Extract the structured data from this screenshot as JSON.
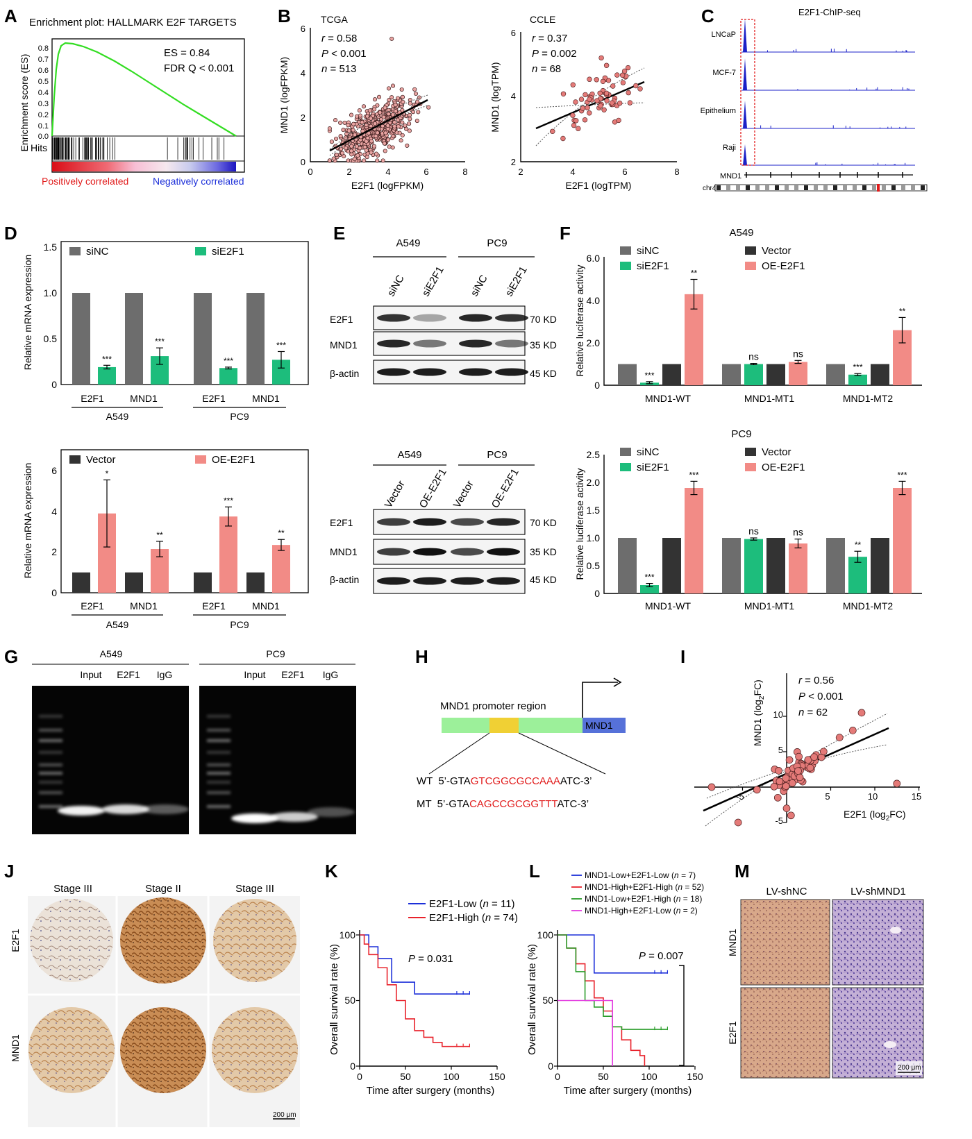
{
  "panel_labels": [
    "A",
    "B",
    "C",
    "D",
    "E",
    "F",
    "G",
    "H",
    "I",
    "J",
    "K",
    "L",
    "M"
  ],
  "colors": {
    "siNC": "#6d6d6d",
    "siE2F1": "#1dbd7c",
    "vector": "#333333",
    "oe_e2f1": "#f28b86",
    "gsea_curve": "#33dd22",
    "km_blue": "#1c2fd9",
    "km_red": "#e8222b",
    "km_green": "#2a9d2a",
    "km_magenta": "#e33ce0",
    "scatter_fill": "#e9a4a2",
    "scatter_fill_dark": "#e47a78",
    "chip_peak": "#1b22c8",
    "red": "#e11b1b"
  },
  "panelA": {
    "title": "Enrichment plot: HALLMARK E2F TARGETS",
    "ylabel": "Enrichment score (ES)",
    "hits_label": "Hits",
    "es_text": "ES = 0.84",
    "fdr_text": "FDR Q < 0.001",
    "pos_label": "Positively correlated",
    "neg_label": "Negatively correlated",
    "yticks": [
      "0.8",
      "0.7",
      "0.6",
      "0.5",
      "0.4",
      "0.3",
      "0.2",
      "0.1",
      "0.0"
    ]
  },
  "panelB": {
    "tcga": {
      "title": "TCGA",
      "r_label": "r",
      "r_value": " = 0.58",
      "p_label": "P",
      "p_value": " < 0.001",
      "n_label": "n",
      "n_value": " = 513",
      "xlabel": "E2F1 (logFPKM)",
      "ylabel": "MND1 (logFPKM)",
      "xticks": [
        "0",
        "2",
        "4",
        "6",
        "8"
      ],
      "yticks": [
        "0",
        "2",
        "4",
        "6"
      ]
    },
    "ccle": {
      "title": "CCLE",
      "r_label": "r",
      "r_value": " = 0.37",
      "p_label": "P",
      "p_value": " = 0.002",
      "n_label": "n",
      "n_value": " = 68",
      "xlabel": "E2F1 (logTPM)",
      "ylabel": "MND1 (logTPM)",
      "xticks": [
        "2",
        "4",
        "6",
        "8"
      ],
      "yticks": [
        "2",
        "4",
        "6"
      ]
    }
  },
  "panelC": {
    "title": "E2F1-ChIP-seq",
    "tracks": [
      "LNCaP",
      "MCF-7",
      "Epithelium",
      "Raji"
    ],
    "gene": "MND1",
    "chrom": "chr4"
  },
  "panelD": {
    "top": {
      "ylabel": "Relative mRNA expression",
      "legend": [
        "siNC",
        "siE2F1"
      ],
      "yticks": [
        "0",
        "0.5",
        "1.0",
        "1.5"
      ],
      "genes": [
        "E2F1",
        "MND1",
        "E2F1",
        "MND1"
      ],
      "groups": [
        "A549",
        "PC9"
      ],
      "sig": [
        "***",
        "***",
        "***",
        "***"
      ]
    },
    "bottom": {
      "ylabel": "Relative mRNA expression",
      "legend": [
        "Vector",
        "OE-E2F1"
      ],
      "yticks": [
        "0",
        "2",
        "4",
        "6"
      ],
      "genes": [
        "E2F1",
        "MND1",
        "E2F1",
        "MND1"
      ],
      "groups": [
        "A549",
        "PC9"
      ],
      "sig": [
        "*",
        "**",
        "***",
        "**"
      ]
    }
  },
  "panelE": {
    "top": {
      "groups": [
        "A549",
        "PC9"
      ],
      "lanes": [
        "siNC",
        "siE2F1",
        "siNC",
        "siE2F1"
      ],
      "rows": [
        "E2F1",
        "MND1",
        "β-actin"
      ],
      "sizes": [
        "70 KD",
        "35 KD",
        "45 KD"
      ]
    },
    "bottom": {
      "groups": [
        "A549",
        "PC9"
      ],
      "lanes": [
        "Vector",
        "OE-E2F1",
        "Vector",
        "OE-E2F1"
      ],
      "rows": [
        "E2F1",
        "MND1",
        "β-actin"
      ],
      "sizes": [
        "70 KD",
        "35 KD",
        "45 KD"
      ]
    }
  },
  "panelF": {
    "top": {
      "title": "A549",
      "ylabel": "Relative luciferase activity",
      "legend": [
        "siNC",
        "siE2F1",
        "Vector",
        "OE-E2F1"
      ],
      "yticks": [
        "0",
        "2.0",
        "4.0",
        "6.0"
      ],
      "groups": [
        "MND1-WT",
        "MND1-MT1",
        "MND1-MT2"
      ],
      "sig": [
        "***",
        "**",
        "ns",
        "ns",
        "***",
        "**"
      ]
    },
    "bottom": {
      "title": "PC9",
      "ylabel": "Relative luciferase activity",
      "legend": [
        "siNC",
        "siE2F1",
        "Vector",
        "OE-E2F1"
      ],
      "yticks": [
        "0",
        "0.5",
        "1.0",
        "1.5",
        "2.0",
        "2.5"
      ],
      "groups": [
        "MND1-WT",
        "MND1-MT1",
        "MND1-MT2"
      ],
      "sig": [
        "***",
        "***",
        "ns",
        "ns",
        "**",
        "***"
      ]
    }
  },
  "panelG": {
    "groups": [
      "A549",
      "PC9"
    ],
    "lanes": [
      "Input",
      "E2F1",
      "IgG",
      "Input",
      "E2F1",
      "IgG"
    ]
  },
  "panelH": {
    "region_label": "MND1 promoter region",
    "gene": "MND1",
    "wt_label": "WT",
    "wt_pre": "5’-GTA",
    "wt_site": "GTCGGCGCCAAA",
    "wt_post": "ATC-3’",
    "mt_label": "MT",
    "mt_pre": "5’-GTA",
    "mt_site": "CAGCCGCGGTTT",
    "mt_post": "ATC-3’"
  },
  "panelI": {
    "r_label": "r",
    "r_value": " = 0.56",
    "p_label": "P",
    "p_value": " < 0.001",
    "n_label": "n",
    "n_value": " = 62",
    "xlabel_main": "E2F1 (log",
    "xlabel_sub": "2",
    "xlabel_end": "FC)",
    "ylabel_main": "MND1 (log",
    "ylabel_sub": "2",
    "ylabel_end": "FC)",
    "xticks": [
      "-5",
      "5",
      "10",
      "15"
    ],
    "yticks": [
      "-5",
      "5",
      "10"
    ]
  },
  "panelJ": {
    "stages": [
      "Stage III",
      "Stage II",
      "Stage III"
    ],
    "rows": [
      "E2F1",
      "MND1"
    ],
    "scale": "200 μm"
  },
  "panelK": {
    "legend": [
      {
        "name": "E2F1-Low (",
        "n": "n",
        "val": " = 11)"
      },
      {
        "name": "E2F1-High (",
        "n": "n",
        "val": " = 74)"
      }
    ],
    "p_label": "P",
    "p_value": " = 0.031",
    "ylabel": "Overall survival rate (%)",
    "xlabel": "Time after surgery (months)",
    "xticks": [
      "0",
      "50",
      "100",
      "150"
    ],
    "yticks": [
      "0",
      "50",
      "100"
    ]
  },
  "panelL": {
    "legend": [
      {
        "name": "MND1-Low+E2F1-Low (",
        "n": "n",
        "val": " = 7)"
      },
      {
        "name": "MND1-High+E2F1-High (",
        "n": "n",
        "val": " = 52)"
      },
      {
        "name": "MND1-Low+E2F1-High (",
        "n": "n",
        "val": " = 18)"
      },
      {
        "name": "MND1-High+E2F1-Low (",
        "n": "n",
        "val": " = 2)"
      }
    ],
    "p_label": "P",
    "p_value": " = 0.007",
    "ylabel": "Overall survival rate (%)",
    "xlabel": "Time after surgery (months)",
    "xticks": [
      "0",
      "50",
      "100",
      "150"
    ],
    "yticks": [
      "0",
      "50",
      "100"
    ]
  },
  "panelM": {
    "cols": [
      "LV-shNC",
      "LV-shMND1"
    ],
    "rows": [
      "MND1",
      "E2F1"
    ],
    "scale": "200 μm"
  },
  "chart_data": [
    {
      "type": "line",
      "panel": "A",
      "title": "Enrichment plot: HALLMARK E2F TARGETS",
      "ylabel": "Enrichment score (ES)",
      "ylim": [
        0,
        0.85
      ],
      "series": [
        {
          "values": [
            0,
            0.5,
            0.78,
            0.84,
            0.82,
            0.78,
            0.72,
            0.65,
            0.57,
            0.49,
            0.41,
            0.33,
            0.25,
            0.17,
            0.09,
            0.0
          ]
        }
      ]
    },
    {
      "type": "scatter",
      "panel": "B-TCGA",
      "title": "TCGA",
      "xlabel": "E2F1 (logFPKM)",
      "ylabel": "MND1 (logFPKM)",
      "xlim": [
        0,
        8
      ],
      "ylim": [
        0,
        6
      ],
      "fit": {
        "x": [
          1,
          6.2
        ],
        "y": [
          0.5,
          2.7
        ]
      }
    },
    {
      "type": "scatter",
      "panel": "B-CCLE",
      "title": "CCLE",
      "xlabel": "E2F1 (logTPM)",
      "ylabel": "MND1 (logTPM)",
      "xlim": [
        2,
        8
      ],
      "ylim": [
        2,
        6
      ],
      "fit": {
        "x": [
          2.7,
          6.7
        ],
        "y": [
          3.05,
          4.5
        ]
      }
    },
    {
      "type": "bar",
      "panel": "D-top",
      "ylabel": "Relative mRNA expression",
      "ylim": [
        0,
        1.5
      ],
      "categories": [
        "A549 E2F1",
        "A549 MND1",
        "PC9 E2F1",
        "PC9 MND1"
      ],
      "series": [
        {
          "name": "siNC",
          "values": [
            1,
            1,
            1,
            1
          ]
        },
        {
          "name": "siE2F1",
          "values": [
            0.19,
            0.31,
            0.18,
            0.27
          ],
          "errors": [
            0.02,
            0.09,
            0.01,
            0.09
          ]
        }
      ]
    },
    {
      "type": "bar",
      "panel": "D-bottom",
      "ylabel": "Relative mRNA expression",
      "ylim": [
        0,
        6
      ],
      "categories": [
        "A549 E2F1",
        "A549 MND1",
        "PC9 E2F1",
        "PC9 MND1"
      ],
      "series": [
        {
          "name": "Vector",
          "values": [
            1,
            1,
            1,
            1
          ]
        },
        {
          "name": "OE-E2F1",
          "values": [
            3.9,
            2.15,
            3.75,
            2.35
          ],
          "errors": [
            1.65,
            0.38,
            0.47,
            0.27
          ]
        }
      ]
    },
    {
      "type": "bar",
      "panel": "F-A549",
      "title": "A549",
      "ylabel": "Relative luciferase activity",
      "ylim": [
        0,
        6
      ],
      "categories": [
        "MND1-WT",
        "MND1-MT1",
        "MND1-MT2"
      ],
      "series": [
        {
          "name": "siNC",
          "values": [
            1,
            1,
            1
          ]
        },
        {
          "name": "siE2F1",
          "values": [
            0.12,
            1.0,
            0.5
          ],
          "errors": [
            0.05,
            0.03,
            0.05
          ]
        },
        {
          "name": "Vector",
          "values": [
            1,
            1,
            1
          ]
        },
        {
          "name": "OE-E2F1",
          "values": [
            4.3,
            1.1,
            2.6
          ],
          "errors": [
            0.7,
            0.07,
            0.6
          ]
        }
      ]
    },
    {
      "type": "bar",
      "panel": "F-PC9",
      "title": "PC9",
      "ylabel": "Relative luciferase activity",
      "ylim": [
        0,
        2.5
      ],
      "categories": [
        "MND1-WT",
        "MND1-MT1",
        "MND1-MT2"
      ],
      "series": [
        {
          "name": "siNC",
          "values": [
            1,
            1,
            1
          ]
        },
        {
          "name": "siE2F1",
          "values": [
            0.15,
            0.98,
            0.66
          ],
          "errors": [
            0.03,
            0.02,
            0.1
          ]
        },
        {
          "name": "Vector",
          "values": [
            1,
            1,
            1
          ]
        },
        {
          "name": "OE-E2F1",
          "values": [
            1.9,
            0.9,
            1.9
          ],
          "errors": [
            0.12,
            0.08,
            0.12
          ]
        }
      ]
    },
    {
      "type": "scatter",
      "panel": "I",
      "xlim": [
        -8,
        15
      ],
      "ylim": [
        -5,
        12
      ],
      "fit": {
        "x": [
          -8,
          12
        ],
        "y": [
          -3.5,
          8.0
        ]
      }
    },
    {
      "type": "line",
      "panel": "K",
      "xlabel": "Time after surgery (months)",
      "ylabel": "Overall survival rate (%)",
      "xlim": [
        0,
        150
      ],
      "ylim": [
        0,
        100
      ],
      "series": [
        {
          "name": "E2F1-Low",
          "x": [
            0,
            10,
            20,
            35,
            60,
            70,
            100,
            120
          ],
          "y": [
            100,
            91,
            82,
            64,
            55,
            55,
            55,
            55
          ]
        },
        {
          "name": "E2F1-High",
          "x": [
            0,
            5,
            10,
            20,
            30,
            40,
            50,
            60,
            70,
            80,
            90,
            100,
            120
          ],
          "y": [
            100,
            93,
            85,
            75,
            62,
            50,
            36,
            27,
            22,
            18,
            15,
            15,
            15
          ]
        }
      ]
    },
    {
      "type": "line",
      "panel": "L",
      "xlabel": "Time after surgery (months)",
      "ylabel": "Overall survival rate (%)",
      "xlim": [
        0,
        150
      ],
      "ylim": [
        0,
        100
      ],
      "series": [
        {
          "name": "MND1-Low+E2F1-Low",
          "x": [
            0,
            30,
            40,
            120
          ],
          "y": [
            100,
            100,
            71,
            71
          ]
        },
        {
          "name": "MND1-High+E2F1-High",
          "x": [
            0,
            10,
            20,
            30,
            40,
            50,
            60,
            70,
            80,
            90,
            95
          ],
          "y": [
            100,
            90,
            78,
            65,
            52,
            42,
            30,
            20,
            12,
            8,
            0
          ]
        },
        {
          "name": "MND1-Low+E2F1-High",
          "x": [
            0,
            10,
            20,
            30,
            40,
            50,
            60,
            70,
            120
          ],
          "y": [
            100,
            90,
            72,
            50,
            45,
            38,
            30,
            28,
            28
          ]
        },
        {
          "name": "MND1-High+E2F1-Low",
          "x": [
            0,
            60,
            60
          ],
          "y": [
            50,
            50,
            0
          ]
        }
      ]
    }
  ]
}
